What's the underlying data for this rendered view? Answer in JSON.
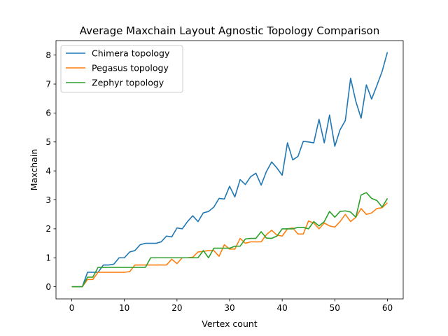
{
  "chart_data": {
    "type": "line",
    "title": "Average Maxchain Layout Agnostic Topology Comparison",
    "xlabel": "Vertex count",
    "ylabel": "Maxchain",
    "xlim": [
      -3,
      63
    ],
    "ylim": [
      -0.42,
      8.5
    ],
    "xticks": [
      0,
      10,
      20,
      30,
      40,
      50,
      60
    ],
    "yticks": [
      0,
      1,
      2,
      3,
      4,
      5,
      6,
      7,
      8
    ],
    "grid": false,
    "legend_position": "upper-left",
    "x": [
      0,
      1,
      2,
      3,
      4,
      5,
      6,
      7,
      8,
      9,
      10,
      11,
      12,
      13,
      14,
      15,
      16,
      17,
      18,
      19,
      20,
      21,
      22,
      23,
      24,
      25,
      26,
      27,
      28,
      29,
      30,
      31,
      32,
      33,
      34,
      35,
      36,
      37,
      38,
      39,
      40,
      41,
      42,
      43,
      44,
      45,
      46,
      47,
      48,
      49,
      50,
      51,
      52,
      53,
      54,
      55,
      56,
      57,
      58,
      59,
      60
    ],
    "series": [
      {
        "name": "Chimera topology",
        "color": "#1f77b4",
        "values": [
          0,
          0,
          0,
          0.5,
          0.5,
          0.5,
          0.75,
          0.75,
          0.78,
          1.0,
          1.0,
          1.2,
          1.25,
          1.45,
          1.5,
          1.5,
          1.5,
          1.55,
          1.75,
          1.72,
          2.03,
          2.0,
          2.25,
          2.45,
          2.25,
          2.55,
          2.6,
          2.75,
          3.05,
          3.03,
          3.47,
          3.1,
          3.7,
          3.53,
          3.8,
          3.92,
          3.51,
          3.98,
          4.31,
          4.1,
          3.85,
          4.97,
          4.38,
          4.5,
          5.02,
          5.0,
          4.97,
          5.78,
          4.97,
          5.93,
          4.85,
          5.42,
          5.74,
          7.2,
          6.4,
          5.82,
          6.97,
          6.48,
          6.95,
          7.44,
          8.1
        ]
      },
      {
        "name": "Pegasus topology",
        "color": "#ff7f0e",
        "values": [
          0,
          0,
          0,
          0.25,
          0.25,
          0.5,
          0.5,
          0.5,
          0.5,
          0.5,
          0.5,
          0.52,
          0.75,
          0.75,
          0.75,
          0.75,
          0.75,
          0.75,
          0.75,
          0.95,
          0.8,
          1.0,
          1.0,
          1.02,
          1.2,
          1.22,
          1.25,
          1.25,
          1.05,
          1.45,
          1.3,
          1.3,
          1.67,
          1.5,
          1.55,
          1.55,
          1.55,
          1.8,
          1.95,
          1.78,
          1.75,
          2.0,
          2.03,
          1.82,
          1.82,
          2.27,
          2.2,
          2.0,
          2.2,
          2.1,
          2.06,
          2.25,
          2.5,
          2.25,
          2.4,
          2.7,
          2.5,
          2.55,
          2.7,
          2.73,
          2.9
        ]
      },
      {
        "name": "Zephyr topology",
        "color": "#2ca02c",
        "values": [
          0,
          0,
          0,
          0.33,
          0.33,
          0.67,
          0.67,
          0.67,
          0.67,
          0.67,
          0.67,
          0.67,
          0.67,
          0.67,
          0.67,
          1.0,
          1.0,
          1.0,
          1.0,
          1.0,
          1.0,
          1.0,
          1.0,
          1.0,
          1.0,
          1.25,
          1.0,
          1.33,
          1.33,
          1.33,
          1.33,
          1.4,
          1.4,
          1.65,
          1.67,
          1.67,
          1.9,
          1.68,
          1.67,
          1.75,
          2.0,
          2.0,
          2.0,
          2.05,
          2.05,
          2.0,
          2.25,
          2.1,
          2.25,
          2.6,
          2.4,
          2.6,
          2.62,
          2.58,
          2.4,
          3.17,
          3.25,
          3.05,
          2.98,
          2.75,
          3.05
        ]
      }
    ]
  }
}
